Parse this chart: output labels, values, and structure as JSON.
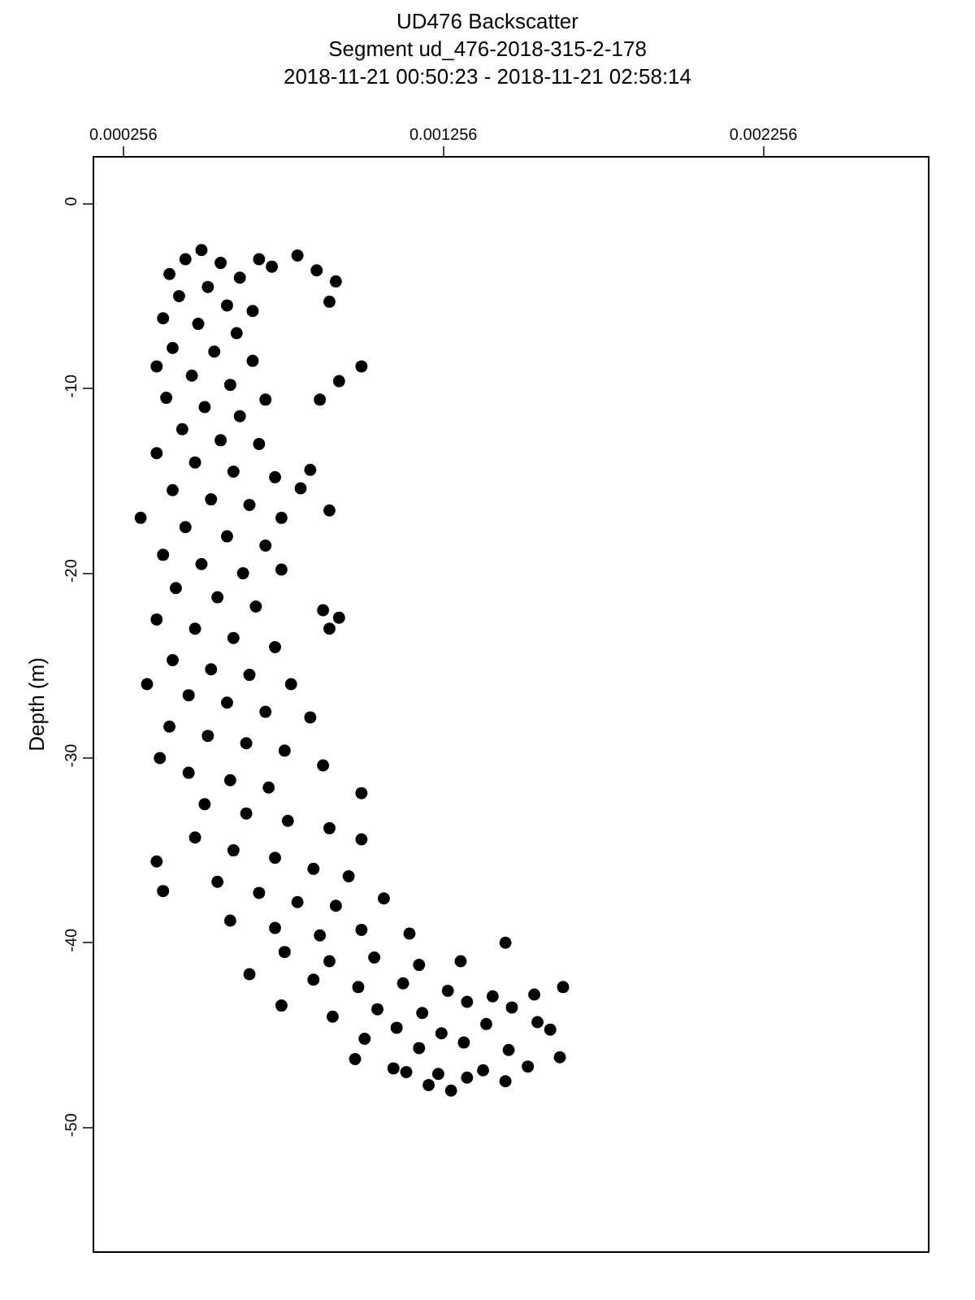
{
  "chart_data": {
    "type": "scatter",
    "title": "UD476 Backscatter\nSegment ud_476-2018-315-2-178\n2018-11-21 00:50:23 - 2018-11-21 02:58:14",
    "ylabel": "Depth (m)",
    "xlim": [
      0.000165,
      0.00277
    ],
    "xticks": [
      0.000256,
      0.001256,
      0.002256
    ],
    "ylim": [
      -56.7,
      2.5
    ],
    "yticks": [
      0,
      -10,
      -20,
      -30,
      -40,
      -50
    ],
    "marker": "circle",
    "series": [
      {
        "color": "#000000",
        "x": [
          0.0005,
          0.00045,
          0.00056,
          0.0004,
          0.00068,
          0.00062,
          0.00052,
          0.00043,
          0.00058,
          0.00066,
          0.00038,
          0.00049,
          0.00061,
          0.00072,
          0.0008,
          0.00092,
          0.0009,
          0.00086,
          0.00041,
          0.00054,
          0.00066,
          0.00036,
          0.00047,
          0.00059,
          0.0007,
          0.001,
          0.00093,
          0.00087,
          0.00039,
          0.00051,
          0.00062,
          0.00044,
          0.00056,
          0.00068,
          0.00036,
          0.00048,
          0.0006,
          0.00073,
          0.00084,
          0.00081,
          0.00041,
          0.00053,
          0.00065,
          0.00075,
          0.0009,
          0.00031,
          0.00045,
          0.00058,
          0.0007,
          0.00038,
          0.0005,
          0.00063,
          0.00075,
          0.00042,
          0.00055,
          0.00067,
          0.00088,
          0.00093,
          0.0009,
          0.00036,
          0.00048,
          0.0006,
          0.00073,
          0.00041,
          0.00053,
          0.00065,
          0.00078,
          0.00033,
          0.00046,
          0.00058,
          0.0007,
          0.00084,
          0.0004,
          0.00052,
          0.00064,
          0.00076,
          0.00088,
          0.00037,
          0.00046,
          0.00059,
          0.00071,
          0.001,
          0.00051,
          0.00064,
          0.00077,
          0.0009,
          0.001,
          0.00036,
          0.00048,
          0.0006,
          0.00073,
          0.00085,
          0.00096,
          0.00038,
          0.00055,
          0.00068,
          0.0008,
          0.00092,
          0.00107,
          0.00059,
          0.00073,
          0.00087,
          0.001,
          0.00115,
          0.00145,
          0.00076,
          0.0009,
          0.00104,
          0.00118,
          0.00131,
          0.00065,
          0.00085,
          0.00099,
          0.00113,
          0.00127,
          0.00141,
          0.00163,
          0.00154,
          0.00075,
          0.00105,
          0.00119,
          0.00133,
          0.00147,
          0.00091,
          0.00111,
          0.00125,
          0.00139,
          0.00155,
          0.00159,
          0.00101,
          0.00118,
          0.00132,
          0.00146,
          0.00162,
          0.00098,
          0.0011,
          0.00124,
          0.00138,
          0.00152,
          0.00121,
          0.00133,
          0.00145,
          0.00114,
          0.00128
        ],
        "values": [
          -2.5,
          -3.0,
          -3.2,
          -3.8,
          -3.0,
          -4.0,
          -4.5,
          -5.0,
          -5.5,
          -5.8,
          -6.2,
          -6.5,
          -7.0,
          -3.4,
          -2.8,
          -4.2,
          -5.3,
          -3.6,
          -7.8,
          -8.0,
          -8.5,
          -8.8,
          -9.3,
          -9.8,
          -10.6,
          -8.8,
          -9.6,
          -10.6,
          -10.5,
          -11.0,
          -11.5,
          -12.2,
          -12.8,
          -13.0,
          -13.5,
          -14.0,
          -14.5,
          -14.8,
          -14.4,
          -15.4,
          -15.5,
          -16.0,
          -16.3,
          -17.0,
          -16.6,
          -17.0,
          -17.5,
          -18.0,
          -18.5,
          -19.0,
          -19.5,
          -20.0,
          -19.8,
          -20.8,
          -21.3,
          -21.8,
          -22.0,
          -22.4,
          -23.0,
          -22.5,
          -23.0,
          -23.5,
          -24.0,
          -24.7,
          -25.2,
          -25.5,
          -26.0,
          -26.0,
          -26.6,
          -27.0,
          -27.5,
          -27.8,
          -28.3,
          -28.8,
          -29.2,
          -29.6,
          -30.4,
          -30.0,
          -30.8,
          -31.2,
          -31.6,
          -31.9,
          -32.5,
          -33.0,
          -33.4,
          -33.8,
          -34.4,
          -35.6,
          -34.3,
          -35.0,
          -35.4,
          -36.0,
          -36.4,
          -37.2,
          -36.7,
          -37.3,
          -37.8,
          -38.0,
          -37.6,
          -38.8,
          -39.2,
          -39.6,
          -39.3,
          -39.5,
          -40.0,
          -40.5,
          -41.0,
          -40.8,
          -41.2,
          -41.0,
          -41.7,
          -42.0,
          -42.4,
          -42.2,
          -42.6,
          -42.9,
          -42.4,
          -42.8,
          -43.4,
          -43.6,
          -43.8,
          -43.2,
          -43.5,
          -44.0,
          -44.6,
          -44.9,
          -44.4,
          -44.3,
          -44.7,
          -45.2,
          -45.7,
          -45.4,
          -45.8,
          -46.2,
          -46.3,
          -46.8,
          -47.1,
          -46.9,
          -46.7,
          -47.7,
          -47.3,
          -47.5,
          -47.0,
          -48.0
        ]
      }
    ]
  }
}
